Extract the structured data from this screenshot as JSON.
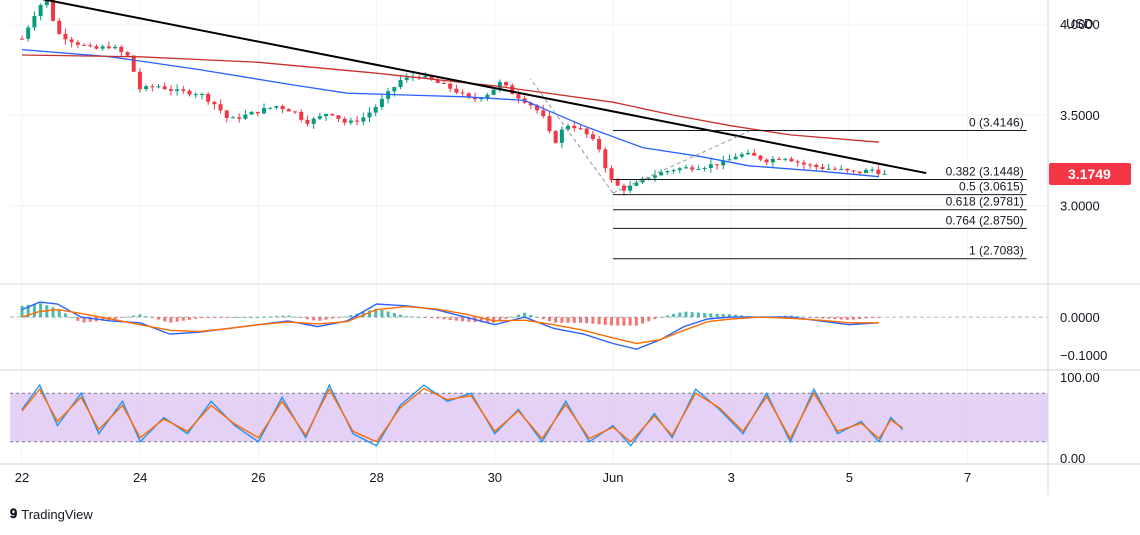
{
  "currency": "USD",
  "brand": {
    "icon": "tradingview-logo-icon",
    "name": "TradingView"
  },
  "last_price": {
    "value": 3.1749,
    "label": "3.1749",
    "color": "#f23645"
  },
  "colors": {
    "up": "#089981",
    "down": "#f23645",
    "ma_fast": "#2962ff",
    "ma_slow": "#c9302c",
    "trendline": "#000000",
    "macd": "#2962ff",
    "signal": "#ff6d00",
    "rsi_band": "#e1c8f5",
    "grid": "#f0f3fa"
  },
  "x_axis": {
    "labels": [
      "22",
      "24",
      "26",
      "28",
      "30",
      "Jun",
      "3",
      "5",
      "7"
    ]
  },
  "chart_data": [
    {
      "type": "candlestick",
      "panel": "price",
      "ylim": [
        2.58,
        4.1
      ],
      "y_tick_labels": [
        "4.0000",
        "3.5000",
        "3.0000"
      ],
      "y_ticks": [
        4.0,
        3.5,
        3.0
      ],
      "trendline": {
        "from": [
          0.0,
          4.16
        ],
        "to": [
          15.3,
          3.18
        ]
      },
      "moving_averages": [
        {
          "color": "#2962ff",
          "points": [
            [
              0,
              3.86
            ],
            [
              1.5,
              3.82
            ],
            [
              3,
              3.75
            ],
            [
              4.5,
              3.67
            ],
            [
              5.5,
              3.62
            ],
            [
              6.5,
              3.61
            ],
            [
              7.5,
              3.6
            ],
            [
              8.5,
              3.58
            ],
            [
              9.5,
              3.44
            ],
            [
              10.5,
              3.32
            ],
            [
              11.5,
              3.27
            ],
            [
              12.3,
              3.22
            ],
            [
              13.5,
              3.19
            ],
            [
              14.5,
              3.16
            ]
          ]
        },
        {
          "color": "#c9302c",
          "points": [
            [
              0,
              3.83
            ],
            [
              2,
              3.82
            ],
            [
              4,
              3.79
            ],
            [
              6,
              3.73
            ],
            [
              8,
              3.66
            ],
            [
              10,
              3.57
            ],
            [
              11,
              3.5
            ],
            [
              12,
              3.44
            ],
            [
              13,
              3.39
            ],
            [
              14.5,
              3.35
            ]
          ]
        }
      ],
      "path": [
        [
          0,
          3.92
        ],
        [
          0.2,
          4.05
        ],
        [
          0.4,
          4.15
        ],
        [
          0.6,
          3.95
        ],
        [
          0.9,
          3.9
        ],
        [
          1.2,
          3.86
        ],
        [
          1.5,
          3.88
        ],
        [
          1.8,
          3.82
        ],
        [
          2.0,
          3.64
        ],
        [
          2.3,
          3.66
        ],
        [
          2.6,
          3.63
        ],
        [
          3.0,
          3.62
        ],
        [
          3.3,
          3.55
        ],
        [
          3.5,
          3.47
        ],
        [
          3.8,
          3.5
        ],
        [
          4.0,
          3.52
        ],
        [
          4.3,
          3.55
        ],
        [
          4.6,
          3.52
        ],
        [
          4.8,
          3.46
        ],
        [
          5.0,
          3.48
        ],
        [
          5.2,
          3.52
        ],
        [
          5.5,
          3.45
        ],
        [
          5.8,
          3.49
        ],
        [
          6.0,
          3.55
        ],
        [
          6.2,
          3.62
        ],
        [
          6.4,
          3.69
        ],
        [
          6.7,
          3.72
        ],
        [
          7.0,
          3.68
        ],
        [
          7.3,
          3.64
        ],
        [
          7.6,
          3.58
        ],
        [
          7.9,
          3.62
        ],
        [
          8.1,
          3.68
        ],
        [
          8.3,
          3.62
        ],
        [
          8.6,
          3.56
        ],
        [
          8.8,
          3.5
        ],
        [
          9.0,
          3.34
        ],
        [
          9.2,
          3.45
        ],
        [
          9.4,
          3.43
        ],
        [
          9.6,
          3.38
        ],
        [
          9.8,
          3.3
        ],
        [
          9.9,
          3.18
        ],
        [
          10.0,
          3.12
        ],
        [
          10.2,
          3.09
        ],
        [
          10.4,
          3.12
        ],
        [
          10.6,
          3.16
        ],
        [
          10.8,
          3.18
        ],
        [
          11.0,
          3.2
        ],
        [
          11.3,
          3.21
        ],
        [
          11.6,
          3.22
        ],
        [
          11.9,
          3.24
        ],
        [
          12.1,
          3.28
        ],
        [
          12.3,
          3.28
        ],
        [
          12.6,
          3.25
        ],
        [
          12.9,
          3.27
        ],
        [
          13.2,
          3.23
        ],
        [
          13.5,
          3.21
        ],
        [
          13.8,
          3.2
        ],
        [
          14.1,
          3.18
        ],
        [
          14.4,
          3.2
        ],
        [
          14.6,
          3.17
        ]
      ]
    },
    {
      "type": "fibonacci",
      "panel": "price",
      "x_range": [
        10.0,
        17.0
      ],
      "levels": [
        {
          "label": "0 (3.4146)",
          "value": 3.4146
        },
        {
          "label": "0.382 (3.1448)",
          "value": 3.1448
        },
        {
          "label": "0.5 (3.0615)",
          "value": 3.0615
        },
        {
          "label": "0.618 (2.9781)",
          "value": 2.9781
        },
        {
          "label": "0.764 (2.8750)",
          "value": 2.875
        },
        {
          "label": "1 (2.7083)",
          "value": 2.7083
        }
      ]
    },
    {
      "type": "line",
      "panel": "macd",
      "ylim": [
        -0.135,
        0.08
      ],
      "y_tick_labels": [
        "0.0000",
        "−0.1000"
      ],
      "y_ticks": [
        0.0,
        -0.1
      ],
      "series": [
        {
          "color": "#2962ff",
          "points": [
            [
              0,
              0.02
            ],
            [
              0.3,
              0.04
            ],
            [
              0.6,
              0.035
            ],
            [
              1.0,
              0.0
            ],
            [
              1.5,
              -0.01
            ],
            [
              2.0,
              -0.015
            ],
            [
              2.5,
              -0.045
            ],
            [
              3.0,
              -0.04
            ],
            [
              3.5,
              -0.03
            ],
            [
              4.0,
              -0.02
            ],
            [
              4.5,
              -0.01
            ],
            [
              5.0,
              -0.025
            ],
            [
              5.5,
              -0.01
            ],
            [
              6.0,
              0.035
            ],
            [
              6.5,
              0.03
            ],
            [
              7.0,
              0.02
            ],
            [
              7.5,
              0.0
            ],
            [
              8.0,
              -0.02
            ],
            [
              8.5,
              0.0
            ],
            [
              9.0,
              -0.03
            ],
            [
              9.5,
              -0.045
            ],
            [
              10.0,
              -0.07
            ],
            [
              10.4,
              -0.085
            ],
            [
              10.8,
              -0.06
            ],
            [
              11.2,
              -0.025
            ],
            [
              11.6,
              -0.005
            ],
            [
              12.0,
              0.0
            ],
            [
              12.5,
              0.0
            ],
            [
              13.0,
              0.0
            ],
            [
              13.5,
              -0.01
            ],
            [
              14.0,
              -0.02
            ],
            [
              14.5,
              -0.015
            ]
          ]
        },
        {
          "color": "#ff6d00",
          "points": [
            [
              0,
              0.0
            ],
            [
              0.3,
              0.015
            ],
            [
              0.6,
              0.02
            ],
            [
              1.0,
              0.01
            ],
            [
              1.5,
              -0.005
            ],
            [
              2.0,
              -0.02
            ],
            [
              2.5,
              -0.035
            ],
            [
              3.0,
              -0.038
            ],
            [
              3.5,
              -0.03
            ],
            [
              4.0,
              -0.02
            ],
            [
              4.5,
              -0.013
            ],
            [
              5.0,
              -0.018
            ],
            [
              5.5,
              -0.012
            ],
            [
              6.0,
              0.02
            ],
            [
              6.5,
              0.028
            ],
            [
              7.0,
              0.022
            ],
            [
              7.5,
              0.008
            ],
            [
              8.0,
              -0.01
            ],
            [
              8.5,
              -0.008
            ],
            [
              9.0,
              -0.02
            ],
            [
              9.5,
              -0.035
            ],
            [
              10.0,
              -0.055
            ],
            [
              10.4,
              -0.07
            ],
            [
              10.8,
              -0.06
            ],
            [
              11.2,
              -0.035
            ],
            [
              11.6,
              -0.012
            ],
            [
              12.0,
              -0.005
            ],
            [
              12.5,
              0.0
            ],
            [
              13.0,
              -0.003
            ],
            [
              13.5,
              -0.008
            ],
            [
              14.0,
              -0.015
            ],
            [
              14.5,
              -0.015
            ]
          ]
        }
      ]
    },
    {
      "type": "line",
      "panel": "rsi",
      "ylim": [
        -5,
        105
      ],
      "band": [
        20,
        80
      ],
      "y_tick_labels": [
        "100.00",
        "0.00"
      ],
      "y_ticks": [
        100,
        0
      ],
      "series": [
        {
          "color": "#2196f3",
          "points": [
            [
              0,
              60
            ],
            [
              0.3,
              90
            ],
            [
              0.6,
              40
            ],
            [
              1.0,
              80
            ],
            [
              1.3,
              30
            ],
            [
              1.7,
              70
            ],
            [
              2.0,
              20
            ],
            [
              2.4,
              50
            ],
            [
              2.8,
              30
            ],
            [
              3.2,
              70
            ],
            [
              3.6,
              40
            ],
            [
              4.0,
              20
            ],
            [
              4.4,
              75
            ],
            [
              4.8,
              25
            ],
            [
              5.2,
              90
            ],
            [
              5.6,
              30
            ],
            [
              6.0,
              15
            ],
            [
              6.4,
              65
            ],
            [
              6.8,
              90
            ],
            [
              7.2,
              70
            ],
            [
              7.6,
              80
            ],
            [
              8.0,
              30
            ],
            [
              8.4,
              60
            ],
            [
              8.8,
              20
            ],
            [
              9.2,
              70
            ],
            [
              9.6,
              20
            ],
            [
              10.0,
              40
            ],
            [
              10.3,
              15
            ],
            [
              10.7,
              55
            ],
            [
              11.0,
              25
            ],
            [
              11.4,
              85
            ],
            [
              11.8,
              60
            ],
            [
              12.2,
              30
            ],
            [
              12.6,
              80
            ],
            [
              13.0,
              20
            ],
            [
              13.4,
              85
            ],
            [
              13.8,
              30
            ],
            [
              14.2,
              45
            ],
            [
              14.5,
              20
            ],
            [
              14.7,
              50
            ],
            [
              14.9,
              35
            ]
          ]
        },
        {
          "color": "#ff6d00",
          "points": [
            [
              0,
              58
            ],
            [
              0.3,
              85
            ],
            [
              0.6,
              45
            ],
            [
              1.0,
              75
            ],
            [
              1.3,
              35
            ],
            [
              1.7,
              65
            ],
            [
              2.0,
              25
            ],
            [
              2.4,
              48
            ],
            [
              2.8,
              33
            ],
            [
              3.2,
              65
            ],
            [
              3.6,
              42
            ],
            [
              4.0,
              25
            ],
            [
              4.4,
              70
            ],
            [
              4.8,
              28
            ],
            [
              5.2,
              85
            ],
            [
              5.6,
              33
            ],
            [
              6.0,
              20
            ],
            [
              6.4,
              62
            ],
            [
              6.8,
              86
            ],
            [
              7.2,
              72
            ],
            [
              7.6,
              77
            ],
            [
              8.0,
              33
            ],
            [
              8.4,
              58
            ],
            [
              8.8,
              24
            ],
            [
              9.2,
              66
            ],
            [
              9.6,
              24
            ],
            [
              10.0,
              38
            ],
            [
              10.3,
              20
            ],
            [
              10.7,
              52
            ],
            [
              11.0,
              28
            ],
            [
              11.4,
              80
            ],
            [
              11.8,
              62
            ],
            [
              12.2,
              33
            ],
            [
              12.6,
              76
            ],
            [
              13.0,
              24
            ],
            [
              13.4,
              80
            ],
            [
              13.8,
              33
            ],
            [
              14.2,
              43
            ],
            [
              14.5,
              24
            ],
            [
              14.7,
              47
            ],
            [
              14.9,
              37
            ]
          ]
        }
      ]
    }
  ]
}
